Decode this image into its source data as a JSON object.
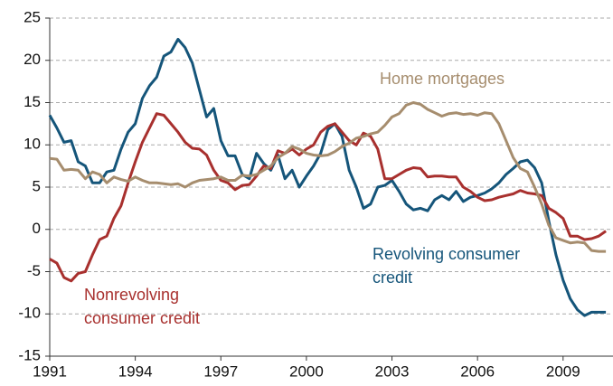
{
  "chart_data": {
    "type": "line",
    "x": [
      1991,
      1991.25,
      1991.5,
      1991.75,
      1992,
      1992.25,
      1992.5,
      1992.75,
      1993,
      1993.25,
      1993.5,
      1993.75,
      1994,
      1994.25,
      1994.5,
      1994.75,
      1995,
      1995.25,
      1995.5,
      1995.75,
      1996,
      1996.25,
      1996.5,
      1996.75,
      1997,
      1997.25,
      1997.5,
      1997.75,
      1998,
      1998.25,
      1998.5,
      1998.75,
      1999,
      1999.25,
      1999.5,
      1999.75,
      2000,
      2000.25,
      2000.5,
      2000.75,
      2001,
      2001.25,
      2001.5,
      2001.75,
      2002,
      2002.25,
      2002.5,
      2002.75,
      2003,
      2003.25,
      2003.5,
      2003.75,
      2004,
      2004.25,
      2004.5,
      2004.75,
      2005,
      2005.25,
      2005.5,
      2005.75,
      2006,
      2006.25,
      2006.5,
      2006.75,
      2007,
      2007.25,
      2007.5,
      2007.75,
      2008,
      2008.25,
      2008.5,
      2008.75,
      2009,
      2009.25,
      2009.5,
      2009.75,
      2010,
      2010.25,
      2010.5
    ],
    "series": [
      {
        "name": "Revolving consumer credit",
        "color": "#15557a",
        "values": [
          13.5,
          12,
          10.3,
          10.5,
          8,
          7.5,
          5.5,
          5.5,
          6.8,
          7,
          9.5,
          11.5,
          12.5,
          15.5,
          17,
          18,
          20.5,
          21,
          22.5,
          21.5,
          19.7,
          16.5,
          13.3,
          14.3,
          10.5,
          8.7,
          8.7,
          6.5,
          6,
          9,
          7.8,
          7,
          8.8,
          6,
          7,
          5,
          6.3,
          7.5,
          9,
          11.8,
          12.5,
          11,
          7,
          5,
          2.5,
          3,
          5,
          5.2,
          5.8,
          4.5,
          3,
          2.3,
          2.5,
          2.2,
          3.5,
          4,
          3.5,
          4.5,
          3.3,
          3.8,
          4,
          4.3,
          4.8,
          5.5,
          6.5,
          7.2,
          8,
          8.2,
          7.3,
          5.5,
          1,
          -3,
          -6,
          -8.2,
          -9.5,
          -10.2,
          -9.8,
          -9.8,
          -9.8
        ]
      },
      {
        "name": "Nonrevolving consumer credit",
        "color": "#a8302e",
        "values": [
          -3.5,
          -4,
          -5.7,
          -6.1,
          -5.2,
          -5,
          -3,
          -1.2,
          -0.8,
          1.3,
          2.8,
          5.5,
          8,
          10.3,
          12,
          13.7,
          13.5,
          12.5,
          11.5,
          10.3,
          9.6,
          9.5,
          8.8,
          7,
          5.8,
          5.5,
          4.7,
          5.2,
          5.3,
          6.3,
          7.5,
          7.2,
          9.3,
          9,
          9.5,
          8.8,
          9.5,
          10,
          11.5,
          12.2,
          12.5,
          11.5,
          10.5,
          10,
          11.4,
          11,
          9.5,
          6,
          6,
          6.5,
          7,
          7.3,
          7.2,
          6.2,
          6.3,
          6.3,
          6.2,
          6.2,
          5,
          4.5,
          3.8,
          3.4,
          3.5,
          3.8,
          4,
          4.2,
          4.6,
          4.3,
          4.2,
          4,
          2.5,
          2,
          1.3,
          -0.8,
          -0.8,
          -1.2,
          -1.1,
          -0.8,
          -0.2
        ]
      },
      {
        "name": "Home mortgages",
        "color": "#a68d6e",
        "values": [
          8.4,
          8.3,
          7,
          7.1,
          7,
          6,
          6.8,
          6.5,
          5.5,
          6.2,
          5.9,
          5.7,
          6.2,
          5.8,
          5.5,
          5.5,
          5.4,
          5.3,
          5.4,
          5,
          5.5,
          5.8,
          5.9,
          6,
          6.2,
          5.8,
          5.8,
          6.4,
          6.3,
          6.5,
          7,
          7.5,
          8.5,
          9,
          9.8,
          9.5,
          9,
          8.8,
          8.7,
          8.8,
          9.2,
          9.8,
          10.2,
          10.8,
          11,
          11.3,
          11.5,
          12.3,
          13.3,
          13.7,
          14.7,
          15,
          14.8,
          14.2,
          13.8,
          13.4,
          13.7,
          13.8,
          13.6,
          13.7,
          13.5,
          13.8,
          13.7,
          12.5,
          10.5,
          8.5,
          7.2,
          6.8,
          5,
          3,
          0.5,
          -1,
          -1.3,
          -1.6,
          -1.5,
          -1.6,
          -2.5,
          -2.6,
          -2.6
        ]
      }
    ],
    "annotations": [
      [
        "Home mortgages"
      ],
      [
        "Revolving consumer",
        "credit"
      ],
      [
        "Nonrevolving",
        "consumer credit"
      ]
    ],
    "xlim": [
      1991,
      2010.75
    ],
    "xticks": [
      1991,
      1994,
      1997,
      2000,
      2003,
      2006,
      2009
    ],
    "ylim": [
      -15,
      25
    ],
    "yticks": [
      -15,
      -10,
      -5,
      0,
      5,
      10,
      15,
      20,
      25
    ],
    "grid": true
  }
}
